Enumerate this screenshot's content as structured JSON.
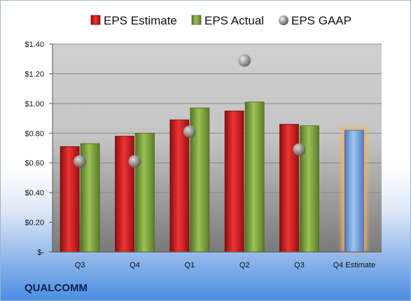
{
  "company": "QUALCOMM",
  "chart_data": {
    "type": "bar",
    "categories": [
      "Q3",
      "Q4",
      "Q1",
      "Q2",
      "Q3",
      "Q4 Estimate"
    ],
    "series": [
      {
        "name": "EPS Estimate",
        "color": "#cc1f1f",
        "values": [
          0.71,
          0.78,
          0.89,
          0.95,
          0.86,
          null
        ]
      },
      {
        "name": "EPS Actual",
        "color": "#7fa33a",
        "values": [
          0.73,
          0.8,
          0.97,
          1.01,
          0.85,
          null
        ]
      },
      {
        "name": "EPS GAAP",
        "color": "#9a9a9a",
        "values": [
          0.61,
          0.61,
          0.81,
          1.29,
          0.69,
          null
        ]
      }
    ],
    "estimate_bar": {
      "category": "Q4 Estimate",
      "value": 0.82,
      "color": "#6f9fd8",
      "glow": "#f4b25e"
    },
    "y_ticks": [
      0,
      0.2,
      0.4,
      0.6,
      0.8,
      1.0,
      1.2,
      1.4
    ],
    "y_tick_labels": [
      "$-",
      "$0.20",
      "$0.40",
      "$0.60",
      "$0.80",
      "$1.00",
      "$1.20",
      "$1.40"
    ],
    "ylim": [
      0,
      1.4
    ],
    "grid": true,
    "legend_position": "top"
  }
}
